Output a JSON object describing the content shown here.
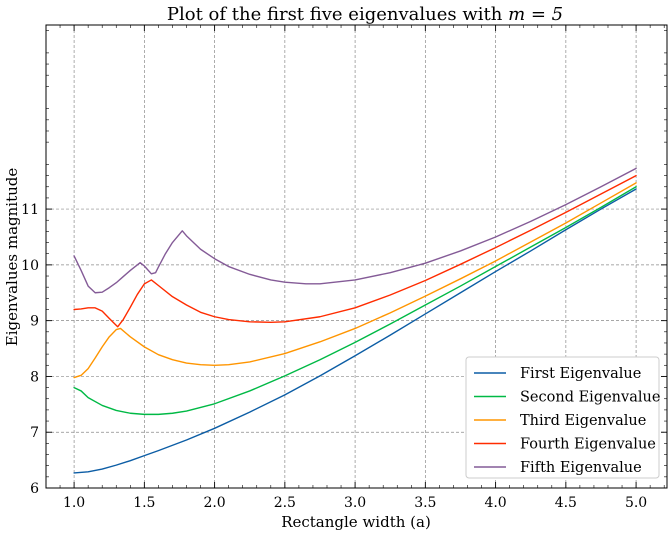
{
  "chart_data": {
    "type": "line",
    "title_prefix": "Plot of the first five eigenvalues with ",
    "title_math": "m = 5",
    "xlabel": "Rectangle width (a)",
    "ylabel": "Eigenvalues magnitude",
    "xlim": [
      0.8,
      5.22
    ],
    "ylim": [
      6.0,
      14.3
    ],
    "xticks": [
      "1.0",
      "1.5",
      "2.0",
      "2.5",
      "3.0",
      "3.5",
      "4.0",
      "4.5",
      "5.0"
    ],
    "yticks": [
      "6",
      "7",
      "8",
      "9",
      "10",
      "11"
    ],
    "grid": true,
    "legend_position": "lower-right",
    "series": [
      {
        "name": "First Eigenvalue",
        "color": "#0c5da5",
        "x": [
          1.0,
          1.1,
          1.2,
          1.3,
          1.4,
          1.5,
          1.6,
          1.8,
          2.0,
          2.25,
          2.5,
          2.75,
          3.0,
          3.25,
          3.5,
          3.75,
          4.0,
          4.25,
          4.5,
          4.75,
          5.0
        ],
        "y": [
          6.27,
          6.29,
          6.34,
          6.41,
          6.49,
          6.58,
          6.67,
          6.86,
          7.07,
          7.36,
          7.67,
          8.01,
          8.37,
          8.74,
          9.12,
          9.5,
          9.88,
          10.25,
          10.63,
          11.0,
          11.36
        ]
      },
      {
        "name": "Second Eigenvalue",
        "color": "#00b945",
        "x": [
          1.0,
          1.05,
          1.1,
          1.2,
          1.3,
          1.4,
          1.5,
          1.55,
          1.6,
          1.7,
          1.8,
          2.0,
          2.25,
          2.5,
          2.75,
          3.0,
          3.25,
          3.5,
          3.75,
          4.0,
          4.25,
          4.5,
          4.75,
          5.0
        ],
        "y": [
          7.8,
          7.74,
          7.62,
          7.48,
          7.39,
          7.34,
          7.32,
          7.32,
          7.32,
          7.34,
          7.38,
          7.51,
          7.74,
          8.01,
          8.3,
          8.61,
          8.94,
          9.28,
          9.62,
          9.97,
          10.32,
          10.67,
          11.03,
          11.4
        ]
      },
      {
        "name": "Third Eigenvalue",
        "color": "#ff9500",
        "x": [
          1.0,
          1.05,
          1.1,
          1.15,
          1.2,
          1.25,
          1.3,
          1.33,
          1.4,
          1.5,
          1.6,
          1.7,
          1.8,
          1.9,
          2.0,
          2.1,
          2.25,
          2.5,
          2.75,
          3.0,
          3.25,
          3.5,
          3.75,
          4.0,
          4.25,
          4.5,
          4.75,
          5.0
        ],
        "y": [
          7.98,
          8.02,
          8.14,
          8.33,
          8.53,
          8.71,
          8.84,
          8.86,
          8.71,
          8.53,
          8.39,
          8.3,
          8.24,
          8.21,
          8.2,
          8.21,
          8.26,
          8.41,
          8.62,
          8.86,
          9.14,
          9.44,
          9.75,
          10.07,
          10.41,
          10.75,
          11.11,
          11.47
        ]
      },
      {
        "name": "Fourth Eigenvalue",
        "color": "#ff2c00",
        "x": [
          1.0,
          1.05,
          1.1,
          1.15,
          1.2,
          1.25,
          1.31,
          1.35,
          1.4,
          1.45,
          1.5,
          1.55,
          1.6,
          1.7,
          1.8,
          1.9,
          2.0,
          2.1,
          2.25,
          2.4,
          2.5,
          2.75,
          3.0,
          3.25,
          3.5,
          3.75,
          4.0,
          4.25,
          4.5,
          4.75,
          5.0
        ],
        "y": [
          9.2,
          9.21,
          9.23,
          9.23,
          9.17,
          9.04,
          8.89,
          9.02,
          9.24,
          9.47,
          9.66,
          9.73,
          9.63,
          9.43,
          9.28,
          9.15,
          9.07,
          9.02,
          8.98,
          8.97,
          8.98,
          9.07,
          9.23,
          9.46,
          9.72,
          10.01,
          10.31,
          10.62,
          10.94,
          11.27,
          11.6
        ]
      },
      {
        "name": "Fifth Eigenvalue",
        "color": "#845b97",
        "x": [
          1.0,
          1.05,
          1.1,
          1.15,
          1.2,
          1.25,
          1.3,
          1.35,
          1.4,
          1.47,
          1.5,
          1.55,
          1.58,
          1.6,
          1.65,
          1.7,
          1.77,
          1.8,
          1.9,
          2.0,
          2.1,
          2.25,
          2.4,
          2.5,
          2.65,
          2.75,
          3.0,
          3.25,
          3.5,
          3.75,
          4.0,
          4.25,
          4.5,
          4.75,
          5.0
        ],
        "y": [
          10.16,
          9.9,
          9.62,
          9.5,
          9.51,
          9.59,
          9.68,
          9.79,
          9.9,
          10.04,
          9.98,
          9.84,
          9.86,
          9.96,
          10.2,
          10.4,
          10.61,
          10.52,
          10.28,
          10.11,
          9.97,
          9.83,
          9.73,
          9.69,
          9.66,
          9.66,
          9.73,
          9.86,
          10.03,
          10.25,
          10.5,
          10.78,
          11.08,
          11.4,
          11.73
        ]
      }
    ]
  }
}
